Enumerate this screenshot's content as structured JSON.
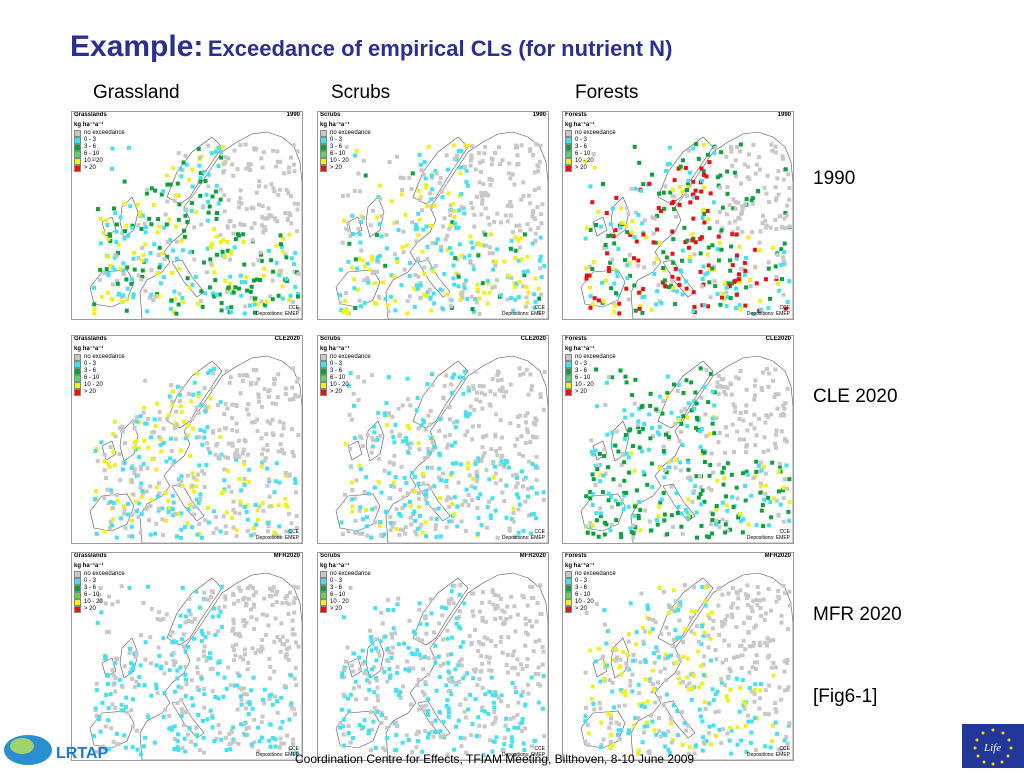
{
  "title": {
    "main": "Example:",
    "sub": "Exceedance of empirical CLs (for nutrient N)"
  },
  "columns": [
    "Grassland",
    "Scrubs",
    "Forests"
  ],
  "rows": [
    "1990",
    "CLE 2020",
    "MFR 2020"
  ],
  "fig_ref": "[Fig6-1]",
  "footer": "Coordination Centre for Effects, TFIAM Meeting, Bilthoven, 8-10 June 2009",
  "legend": {
    "units": "kg ha⁻¹a⁻¹",
    "items": [
      "no exceedance",
      "0 - 3",
      "3 - 6",
      "6 - 10",
      "10 - 20",
      "> 20"
    ],
    "colors": [
      "#c8c8c8",
      "#46e0f0",
      "#0aa03c",
      "#58d85a",
      "#f0f020",
      "#e81010"
    ]
  },
  "panels": [
    {
      "title": "Grasslands",
      "year": "1990"
    },
    {
      "title": "Scrubs",
      "year": "1990"
    },
    {
      "title": "Forests",
      "year": "1990"
    },
    {
      "title": "Grasslands",
      "year": "CLE2020"
    },
    {
      "title": "Scrubs",
      "year": "CLE2020"
    },
    {
      "title": "Forests",
      "year": "CLE2020"
    },
    {
      "title": "Grasslands",
      "year": "MFR2020"
    },
    {
      "title": "Scrubs",
      "year": "MFR2020"
    },
    {
      "title": "Forests",
      "year": "MFR2020"
    }
  ],
  "map_footer": {
    "cce": "CCE",
    "dep": "Depositions: EMEP"
  },
  "logos": {
    "lrtap": "LRTAP",
    "life": "Life"
  }
}
